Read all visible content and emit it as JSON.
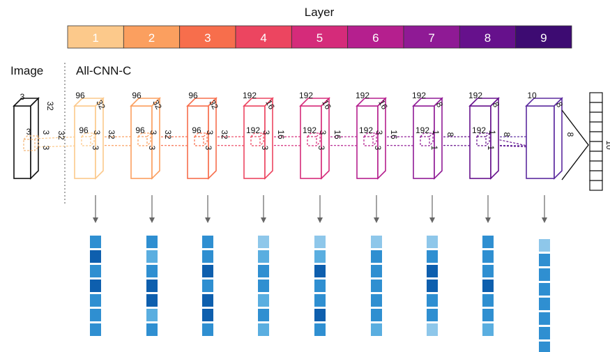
{
  "header": {
    "title": "Layer",
    "segments": [
      {
        "label": "1",
        "color": "#fcc98b"
      },
      {
        "label": "2",
        "color": "#fb9f5f"
      },
      {
        "label": "3",
        "color": "#f76e4c"
      },
      {
        "label": "4",
        "color": "#ec4560"
      },
      {
        "label": "5",
        "color": "#d52b7a"
      },
      {
        "label": "6",
        "color": "#b51f8e"
      },
      {
        "label": "7",
        "color": "#8f1a95"
      },
      {
        "label": "8",
        "color": "#66118c"
      },
      {
        "label": "9",
        "color": "#3d0b72"
      }
    ]
  },
  "image_label": "Image",
  "network_label": "All-CNN-C",
  "input": {
    "depth": "3",
    "top": "32",
    "side": "32",
    "kernel_a": "3",
    "kernel_b": "3",
    "kernel_c": "3",
    "color": "#111111"
  },
  "layers": [
    {
      "depth": "96",
      "top": "32",
      "side": "32",
      "kdepth": "96",
      "ka": "3",
      "kb": "3",
      "color": "#fcc98b"
    },
    {
      "depth": "96",
      "top": "32",
      "side": "32",
      "kdepth": "96",
      "ka": "3",
      "kb": "3",
      "color": "#fb9f5f"
    },
    {
      "depth": "96",
      "top": "32",
      "side": "32",
      "kdepth": "96",
      "ka": "3",
      "kb": "3",
      "color": "#f76e4c"
    },
    {
      "depth": "192",
      "top": "16",
      "side": "16",
      "kdepth": "192",
      "ka": "3",
      "kb": "3",
      "color": "#ec4560"
    },
    {
      "depth": "192",
      "top": "16",
      "side": "16",
      "kdepth": "192",
      "ka": "3",
      "kb": "3",
      "color": "#d52b7a"
    },
    {
      "depth": "192",
      "top": "16",
      "side": "16",
      "kdepth": "192",
      "ka": "3",
      "kb": "3",
      "color": "#b51f8e"
    },
    {
      "depth": "192",
      "top": "8",
      "side": "8",
      "kdepth": "192",
      "ka": "1",
      "kb": "1",
      "color": "#8f1a95"
    },
    {
      "depth": "192",
      "top": "8",
      "side": "8",
      "kdepth": "192",
      "ka": "1",
      "kb": "1",
      "color": "#66118c"
    },
    {
      "depth": "10",
      "top": "8",
      "side": "8",
      "kdepth": "",
      "ka": "",
      "kb": "",
      "color": "#5b2a9e"
    }
  ],
  "output": {
    "label": "10",
    "color": "#111111"
  },
  "arrow_color": "#666666",
  "feature_columns": [
    {
      "squares": [
        "#2f8fd1",
        "#0e5fae",
        "#2f8fd1",
        "#0e5fae",
        "#2f8fd1",
        "#2f8fd1",
        "#2f8fd1"
      ]
    },
    {
      "squares": [
        "#2f8fd1",
        "#5aaee0",
        "#2f8fd1",
        "#0e5fae",
        "#0e5fae",
        "#5aaee0",
        "#2f8fd1"
      ]
    },
    {
      "squares": [
        "#2f8fd1",
        "#2f8fd1",
        "#0e5fae",
        "#2f8fd1",
        "#0e5fae",
        "#0e5fae",
        "#2f8fd1"
      ]
    },
    {
      "squares": [
        "#8ec7ea",
        "#5aaee0",
        "#2f8fd1",
        "#2f8fd1",
        "#5aaee0",
        "#2f8fd1",
        "#5aaee0"
      ]
    },
    {
      "squares": [
        "#8ec7ea",
        "#5aaee0",
        "#0e5fae",
        "#2f8fd1",
        "#2f8fd1",
        "#0e5fae",
        "#2f8fd1"
      ]
    },
    {
      "squares": [
        "#8ec7ea",
        "#2f8fd1",
        "#2f8fd1",
        "#2f8fd1",
        "#2f8fd1",
        "#2f8fd1",
        "#5aaee0"
      ]
    },
    {
      "squares": [
        "#8ec7ea",
        "#2f8fd1",
        "#0e5fae",
        "#0e5fae",
        "#2f8fd1",
        "#2f8fd1",
        "#8ec7ea"
      ]
    },
    {
      "squares": [
        "#2f8fd1",
        "#2f8fd1",
        "#2f8fd1",
        "#0e5fae",
        "#2f8fd1",
        "#2f8fd1",
        "#5aaee0"
      ]
    },
    {
      "squares": [
        "#8ec7ea",
        "#2f8fd1",
        "#2f8fd1",
        "#2f8fd1",
        "#2f8fd1",
        "#2f8fd1",
        "#2f8fd1",
        "#2f8fd1"
      ]
    }
  ]
}
